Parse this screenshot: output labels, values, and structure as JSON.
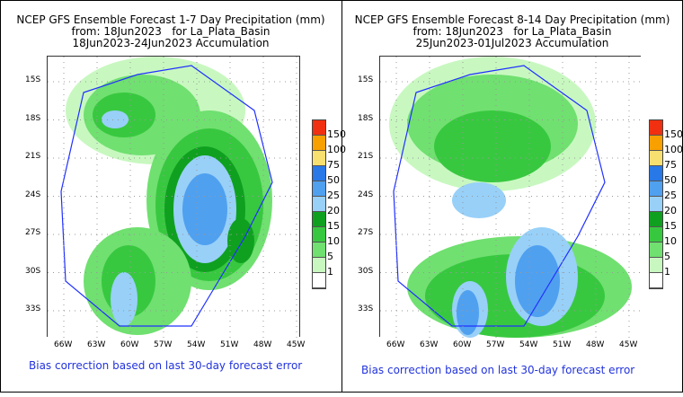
{
  "chart_data": [
    {
      "type": "heatmap",
      "title": "NCEP GFS Ensemble Forecast 1-7 Day Precipitation (mm)",
      "subtitle1": "from: 18Jun2023   for La_Plata_Basin",
      "subtitle2": "18Jun2023-24Jun2023 Accumulation",
      "yticks": [
        "15S",
        "18S",
        "21S",
        "24S",
        "27S",
        "30S",
        "33S"
      ],
      "xticks": [
        "66W",
        "63W",
        "60W",
        "57W",
        "54W",
        "51W",
        "48W",
        "45W"
      ],
      "note": "Bias correction based on last 30-day forecast error"
    },
    {
      "type": "heatmap",
      "title": "NCEP GFS Ensemble Forecast 8-14 Day Precipitation (mm)",
      "subtitle1": "from: 18Jun2023   for La_Plata_Basin",
      "subtitle2": "25Jun2023-01Jul2023 Accumulation",
      "yticks": [
        "15S",
        "18S",
        "21S",
        "24S",
        "27S",
        "30S",
        "33S"
      ],
      "xticks": [
        "66W",
        "63W",
        "60W",
        "57W",
        "54W",
        "51W",
        "48W",
        "45W"
      ],
      "note": "Bias correction based on last 30-day forecast error"
    }
  ],
  "legend": {
    "labels": [
      "150",
      "100",
      "75",
      "50",
      "25",
      "20",
      "15",
      "10",
      "5",
      "1"
    ],
    "colors": [
      "#f03010",
      "#f8a000",
      "#f8e070",
      "#2878e8",
      "#50a0f0",
      "#98d0f8",
      "#10a020",
      "#38c840",
      "#70e070",
      "#c8f8c0",
      "#ffffff"
    ]
  }
}
